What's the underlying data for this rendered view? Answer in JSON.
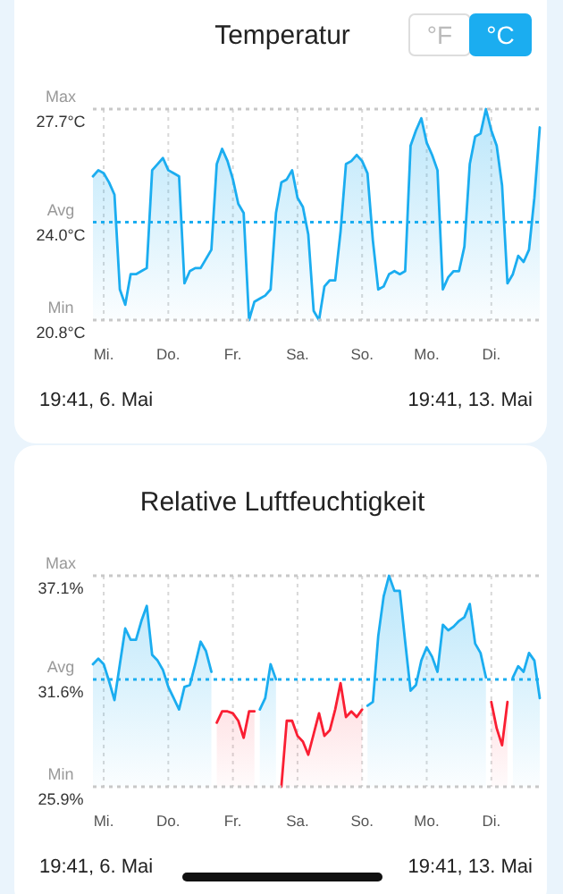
{
  "chart_data": [
    {
      "type": "area",
      "title": "Temperatur",
      "ylim": [
        20.8,
        27.7
      ],
      "grid": "x",
      "categories": [
        null,
        null,
        "Mi.",
        null,
        null,
        null,
        null,
        null,
        null,
        null,
        null,
        null,
        null,
        null,
        "Do.",
        null,
        null,
        null,
        null,
        null,
        null,
        null,
        null,
        null,
        null,
        null,
        "Fr.",
        null,
        null,
        null,
        null,
        null,
        null,
        null,
        null,
        null,
        null,
        null,
        "Sa.",
        null,
        null,
        null,
        null,
        null,
        null,
        null,
        null,
        null,
        null,
        null,
        "So.",
        null,
        null,
        null,
        null,
        null,
        null,
        null,
        null,
        null,
        null,
        null,
        "Mo.",
        null,
        null,
        null,
        null,
        null,
        null,
        null,
        null,
        null,
        null,
        null,
        "Di.",
        null,
        null,
        null,
        null,
        null,
        null,
        null,
        null,
        null
      ],
      "yticks": [
        {
          "value": 20.8,
          "label": "20.8°C"
        },
        {
          "value": 24.0,
          "label": "24.0°C"
        },
        {
          "value": 27.7,
          "label": "27.7°C"
        }
      ],
      "ref_lines": [
        {
          "axis": "y",
          "value": 27.7,
          "label": "Max",
          "color": "#c8c8c8",
          "line_style": "dotted"
        },
        {
          "axis": "y",
          "value": 24.0,
          "label": "Avg",
          "color": "#1badf0",
          "line_style": "dotted"
        },
        {
          "axis": "y",
          "value": 20.8,
          "label": "Min",
          "color": "#c8c8c8",
          "line_style": "dotted"
        }
      ],
      "annotations": [
        "°F",
        "°C",
        "19:41,  6. Mai",
        "19:41,  13. Mai"
      ],
      "series": [
        {
          "color": "#1badf0",
          "values": [
            25.5,
            25.7,
            25.6,
            25.3,
            24.9,
            21.8,
            21.3,
            22.3,
            22.3,
            22.4,
            22.5,
            25.7,
            25.9,
            26.1,
            25.7,
            25.6,
            25.5,
            22.0,
            22.4,
            22.5,
            22.5,
            22.8,
            23.1,
            25.9,
            26.4,
            26.0,
            25.4,
            24.6,
            24.3,
            20.8,
            21.4,
            21.5,
            21.6,
            21.8,
            24.3,
            25.3,
            25.4,
            25.7,
            24.8,
            24.5,
            23.6,
            21.1,
            20.8,
            21.9,
            22.1,
            22.1,
            23.7,
            25.9,
            26.0,
            26.2,
            26.0,
            25.6,
            23.4,
            21.8,
            21.9,
            22.3,
            22.4,
            22.3,
            22.4,
            26.5,
            27.0,
            27.4,
            26.6,
            26.2,
            25.7,
            21.8,
            22.2,
            22.4,
            22.4,
            23.2,
            25.9,
            26.8,
            26.9,
            27.7,
            27.0,
            26.5,
            25.2,
            22.0,
            22.3,
            22.9,
            22.7,
            23.1,
            24.8,
            27.1
          ]
        }
      ]
    },
    {
      "type": "area",
      "title": "Relative Luftfeuchtigkeit",
      "ylim": [
        25.9,
        37.1
      ],
      "grid": "x",
      "categories": [
        null,
        null,
        "Mi.",
        null,
        null,
        null,
        null,
        null,
        null,
        null,
        null,
        null,
        null,
        null,
        "Do.",
        null,
        null,
        null,
        null,
        null,
        null,
        null,
        null,
        null,
        null,
        null,
        "Fr.",
        null,
        null,
        null,
        null,
        null,
        null,
        null,
        null,
        null,
        null,
        null,
        "Sa.",
        null,
        null,
        null,
        null,
        null,
        null,
        null,
        null,
        null,
        null,
        null,
        "So.",
        null,
        null,
        null,
        null,
        null,
        null,
        null,
        null,
        null,
        null,
        null,
        "Mo.",
        null,
        null,
        null,
        null,
        null,
        null,
        null,
        null,
        null,
        null,
        null,
        "Di.",
        null,
        null,
        null,
        null,
        null,
        null,
        null,
        null,
        null
      ],
      "yticks": [
        {
          "value": 25.9,
          "label": "25.9%"
        },
        {
          "value": 31.6,
          "label": "31.6%"
        },
        {
          "value": 37.1,
          "label": "37.1%"
        }
      ],
      "ref_lines": [
        {
          "axis": "y",
          "value": 37.1,
          "label": "Max",
          "color": "#c8c8c8",
          "line_style": "dotted"
        },
        {
          "axis": "y",
          "value": 31.6,
          "label": "Avg",
          "color": "#1badf0",
          "line_style": "dotted"
        },
        {
          "axis": "y",
          "value": 25.9,
          "label": "Min",
          "color": "#c8c8c8",
          "line_style": "dotted"
        }
      ],
      "annotations": [
        "19:41,  6. Mai",
        "19:41,  13. Mai"
      ],
      "series": [
        {
          "color": "#1badf0",
          "values": [
            32.4,
            32.7,
            32.4,
            31.5,
            30.5,
            32.4,
            34.3,
            33.7,
            33.7,
            34.7,
            35.5,
            32.9,
            32.6,
            32.1,
            31.2,
            30.6,
            30.0,
            31.2,
            31.3,
            32.4,
            33.6,
            33.1,
            32.0,
            null,
            null,
            null,
            null,
            null,
            null,
            null,
            null,
            30.0,
            30.6,
            32.4,
            31.6,
            null,
            null,
            null,
            null,
            null,
            null,
            null,
            null,
            null,
            null,
            null,
            null,
            null,
            null,
            null,
            null,
            30.2,
            30.4,
            33.9,
            36.0,
            37.1,
            36.3,
            36.3,
            33.6,
            31.0,
            31.3,
            32.6,
            33.3,
            32.8,
            32.0,
            34.5,
            34.2,
            34.4,
            34.7,
            34.9,
            35.6,
            33.5,
            33.0,
            31.7,
            null,
            null,
            null,
            null,
            31.7,
            32.3,
            32.0,
            33.0,
            32.6,
            30.6
          ]
        },
        {
          "color": "#fa1e32",
          "values": [
            null,
            null,
            null,
            null,
            null,
            null,
            null,
            null,
            null,
            null,
            null,
            null,
            null,
            null,
            null,
            null,
            null,
            null,
            null,
            null,
            null,
            null,
            null,
            29.3,
            29.9,
            29.9,
            29.8,
            29.4,
            28.5,
            29.9,
            29.9,
            null,
            null,
            null,
            null,
            25.9,
            29.4,
            29.4,
            28.6,
            28.3,
            27.6,
            28.7,
            29.8,
            28.6,
            28.9,
            30.0,
            31.4,
            29.6,
            29.9,
            29.6,
            30.0,
            null,
            null,
            null,
            null,
            null,
            null,
            null,
            null,
            null,
            null,
            null,
            null,
            null,
            null,
            null,
            null,
            null,
            null,
            null,
            null,
            null,
            null,
            null,
            30.4,
            29.0,
            28.1,
            30.4,
            null,
            null,
            null,
            null,
            null,
            null
          ]
        }
      ]
    }
  ]
}
